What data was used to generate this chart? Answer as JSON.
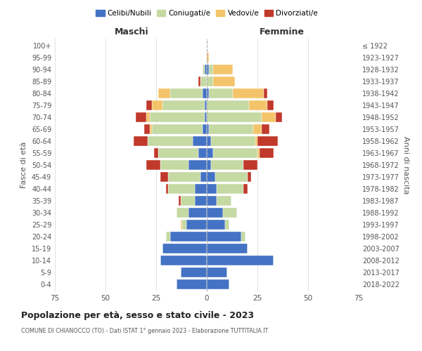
{
  "age_groups": [
    "0-4",
    "5-9",
    "10-14",
    "15-19",
    "20-24",
    "25-29",
    "30-34",
    "35-39",
    "40-44",
    "45-49",
    "50-54",
    "55-59",
    "60-64",
    "65-69",
    "70-74",
    "75-79",
    "80-84",
    "85-89",
    "90-94",
    "95-99",
    "100+"
  ],
  "birth_years": [
    "2018-2022",
    "2013-2017",
    "2008-2012",
    "2003-2007",
    "1998-2002",
    "1993-1997",
    "1988-1992",
    "1983-1987",
    "1978-1982",
    "1973-1977",
    "1968-1972",
    "1963-1967",
    "1958-1962",
    "1953-1957",
    "1948-1952",
    "1943-1947",
    "1938-1942",
    "1933-1937",
    "1928-1932",
    "1923-1927",
    "≤ 1922"
  ],
  "maschi": {
    "celibi": [
      15,
      13,
      23,
      22,
      18,
      10,
      9,
      6,
      6,
      3,
      9,
      4,
      7,
      2,
      1,
      1,
      2,
      0,
      1,
      0,
      0
    ],
    "coniugati": [
      0,
      0,
      0,
      0,
      2,
      2,
      6,
      7,
      13,
      16,
      14,
      20,
      22,
      25,
      27,
      21,
      16,
      3,
      1,
      0,
      0
    ],
    "vedovi": [
      0,
      0,
      0,
      0,
      0,
      1,
      0,
      0,
      0,
      0,
      0,
      0,
      0,
      1,
      2,
      5,
      6,
      0,
      0,
      0,
      0
    ],
    "divorziati": [
      0,
      0,
      0,
      0,
      0,
      0,
      0,
      1,
      1,
      4,
      7,
      2,
      7,
      3,
      5,
      3,
      0,
      1,
      0,
      0,
      0
    ]
  },
  "femmine": {
    "nubili": [
      11,
      10,
      33,
      20,
      17,
      9,
      8,
      5,
      5,
      4,
      2,
      3,
      2,
      1,
      0,
      0,
      1,
      0,
      1,
      0,
      0
    ],
    "coniugate": [
      0,
      0,
      0,
      0,
      2,
      2,
      7,
      7,
      13,
      16,
      16,
      22,
      22,
      22,
      27,
      21,
      12,
      3,
      2,
      0,
      0
    ],
    "vedove": [
      0,
      0,
      0,
      0,
      0,
      0,
      0,
      0,
      0,
      0,
      0,
      1,
      1,
      4,
      7,
      9,
      15,
      11,
      10,
      1,
      0
    ],
    "divorziate": [
      0,
      0,
      0,
      0,
      0,
      0,
      0,
      0,
      2,
      2,
      7,
      7,
      10,
      4,
      3,
      3,
      2,
      0,
      0,
      0,
      0
    ]
  },
  "colors": {
    "celibi": "#4472c4",
    "coniugati": "#c5d9a3",
    "vedovi": "#f4c46a",
    "divorziati": "#c0392b"
  },
  "xlim": 75,
  "title": "Popolazione per età, sesso e stato civile - 2023",
  "subtitle": "COMUNE DI CHIANOCCO (TO) - Dati ISTAT 1° gennaio 2023 - Elaborazione TUTTITALIA.IT",
  "ylabel_left": "Fasce di età",
  "ylabel_right": "Anni di nascita",
  "xlabel_left": "Maschi",
  "xlabel_right": "Femmine",
  "background_color": "#ffffff",
  "grid_color": "#cccccc"
}
